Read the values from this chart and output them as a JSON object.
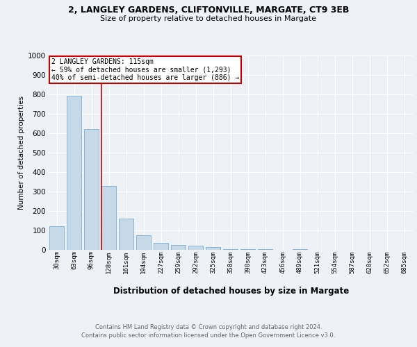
{
  "title1": "2, LANGLEY GARDENS, CLIFTONVILLE, MARGATE, CT9 3EB",
  "title2": "Size of property relative to detached houses in Margate",
  "xlabel": "Distribution of detached houses by size in Margate",
  "ylabel": "Number of detached properties",
  "categories": [
    "30sqm",
    "63sqm",
    "96sqm",
    "128sqm",
    "161sqm",
    "194sqm",
    "227sqm",
    "259sqm",
    "292sqm",
    "325sqm",
    "358sqm",
    "390sqm",
    "423sqm",
    "456sqm",
    "489sqm",
    "521sqm",
    "554sqm",
    "587sqm",
    "620sqm",
    "652sqm",
    "685sqm"
  ],
  "values": [
    122,
    793,
    621,
    330,
    160,
    76,
    36,
    25,
    20,
    14,
    5,
    2,
    4,
    0,
    5,
    0,
    0,
    0,
    0,
    0,
    0
  ],
  "bar_color": "#c5d9e8",
  "bar_edge_color": "#7baed4",
  "marker_label": "2 LANGLEY GARDENS: 115sqm",
  "annotation_line1": "← 59% of detached houses are smaller (1,293)",
  "annotation_line2": "40% of semi-detached houses are larger (886) →",
  "annotation_box_color": "#ffffff",
  "annotation_box_edge": "#cc0000",
  "marker_line_color": "#cc0000",
  "footer1": "Contains HM Land Registry data © Crown copyright and database right 2024.",
  "footer2": "Contains public sector information licensed under the Open Government Licence v3.0.",
  "ylim": [
    0,
    1000
  ],
  "yticks": [
    0,
    100,
    200,
    300,
    400,
    500,
    600,
    700,
    800,
    900,
    1000
  ],
  "background_color": "#eef2f7",
  "grid_color": "#ffffff"
}
